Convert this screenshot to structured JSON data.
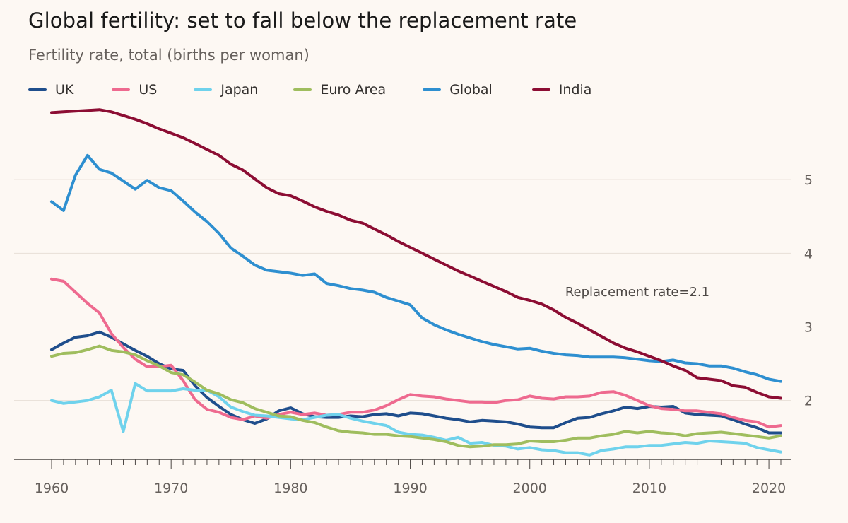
{
  "chart_data": {
    "type": "line",
    "title": "Global fertility: set to fall below the replacement rate",
    "subtitle": "Fertility rate, total (births per woman)",
    "xlabel": "",
    "ylabel": "",
    "xlim": [
      1960,
      2021
    ],
    "ylim": [
      1.2,
      6.0
    ],
    "x_ticks": [
      1960,
      1970,
      1980,
      1990,
      2000,
      2010,
      2020
    ],
    "y_ticks": [
      2,
      3,
      4,
      5
    ],
    "y_axis_side": "right",
    "grid": "horizontal",
    "legend_position": "top-left",
    "annotations": [
      {
        "text": "Replacement rate=2.1",
        "x": 2009,
        "y": 3.42
      }
    ],
    "x": [
      1960,
      1961,
      1962,
      1963,
      1964,
      1965,
      1966,
      1967,
      1968,
      1969,
      1970,
      1971,
      1972,
      1973,
      1974,
      1975,
      1976,
      1977,
      1978,
      1979,
      1980,
      1981,
      1982,
      1983,
      1984,
      1985,
      1986,
      1987,
      1988,
      1989,
      1990,
      1991,
      1992,
      1993,
      1994,
      1995,
      1996,
      1997,
      1998,
      1999,
      2000,
      2001,
      2002,
      2003,
      2004,
      2005,
      2006,
      2007,
      2008,
      2009,
      2010,
      2011,
      2012,
      2013,
      2014,
      2015,
      2016,
      2017,
      2018,
      2019,
      2020,
      2021
    ],
    "series": [
      {
        "name": "UK",
        "color": "#1f4e8c",
        "values": [
          2.69,
          2.78,
          2.86,
          2.88,
          2.93,
          2.86,
          2.77,
          2.68,
          2.6,
          2.5,
          2.43,
          2.41,
          2.2,
          2.04,
          1.92,
          1.81,
          1.74,
          1.69,
          1.75,
          1.86,
          1.9,
          1.82,
          1.78,
          1.77,
          1.77,
          1.79,
          1.78,
          1.81,
          1.82,
          1.79,
          1.83,
          1.82,
          1.79,
          1.76,
          1.74,
          1.71,
          1.73,
          1.72,
          1.71,
          1.68,
          1.64,
          1.63,
          1.63,
          1.7,
          1.76,
          1.77,
          1.82,
          1.86,
          1.91,
          1.89,
          1.92,
          1.91,
          1.92,
          1.83,
          1.81,
          1.8,
          1.79,
          1.74,
          1.68,
          1.63,
          1.56,
          1.56
        ]
      },
      {
        "name": "US",
        "color": "#ee6a8f",
        "values": [
          3.65,
          3.62,
          3.47,
          3.32,
          3.19,
          2.91,
          2.72,
          2.56,
          2.46,
          2.46,
          2.48,
          2.27,
          2.01,
          1.88,
          1.84,
          1.77,
          1.74,
          1.79,
          1.76,
          1.81,
          1.84,
          1.81,
          1.83,
          1.8,
          1.81,
          1.84,
          1.84,
          1.87,
          1.93,
          2.01,
          2.08,
          2.06,
          2.05,
          2.02,
          2.0,
          1.98,
          1.98,
          1.97,
          2.0,
          2.01,
          2.06,
          2.03,
          2.02,
          2.05,
          2.05,
          2.06,
          2.11,
          2.12,
          2.07,
          2.0,
          1.93,
          1.89,
          1.88,
          1.86,
          1.86,
          1.84,
          1.82,
          1.77,
          1.73,
          1.71,
          1.64,
          1.66
        ]
      },
      {
        "name": "Japan",
        "color": "#6fd2ec",
        "values": [
          2.0,
          1.96,
          1.98,
          2.0,
          2.05,
          2.14,
          1.58,
          2.23,
          2.13,
          2.13,
          2.13,
          2.16,
          2.14,
          2.14,
          2.05,
          1.91,
          1.85,
          1.8,
          1.79,
          1.77,
          1.75,
          1.74,
          1.77,
          1.8,
          1.81,
          1.76,
          1.72,
          1.69,
          1.66,
          1.57,
          1.54,
          1.53,
          1.5,
          1.46,
          1.5,
          1.42,
          1.43,
          1.39,
          1.38,
          1.34,
          1.36,
          1.33,
          1.32,
          1.29,
          1.29,
          1.26,
          1.32,
          1.34,
          1.37,
          1.37,
          1.39,
          1.39,
          1.41,
          1.43,
          1.42,
          1.45,
          1.44,
          1.43,
          1.42,
          1.36,
          1.33,
          1.3
        ]
      },
      {
        "name": "Euro Area",
        "color": "#9fbd5e",
        "values": [
          2.6,
          2.64,
          2.65,
          2.69,
          2.74,
          2.68,
          2.66,
          2.62,
          2.54,
          2.47,
          2.38,
          2.35,
          2.25,
          2.14,
          2.09,
          2.01,
          1.97,
          1.89,
          1.84,
          1.79,
          1.78,
          1.73,
          1.7,
          1.64,
          1.59,
          1.57,
          1.56,
          1.54,
          1.54,
          1.52,
          1.51,
          1.49,
          1.47,
          1.44,
          1.39,
          1.37,
          1.38,
          1.4,
          1.4,
          1.41,
          1.45,
          1.44,
          1.44,
          1.46,
          1.49,
          1.49,
          1.52,
          1.54,
          1.58,
          1.56,
          1.58,
          1.56,
          1.55,
          1.52,
          1.55,
          1.56,
          1.57,
          1.55,
          1.53,
          1.51,
          1.49,
          1.52
        ]
      },
      {
        "name": "Global",
        "color": "#2e8fd0",
        "values": [
          4.7,
          4.58,
          5.06,
          5.33,
          5.14,
          5.09,
          4.98,
          4.87,
          4.99,
          4.89,
          4.85,
          4.71,
          4.56,
          4.43,
          4.27,
          4.07,
          3.96,
          3.84,
          3.77,
          3.75,
          3.73,
          3.7,
          3.72,
          3.59,
          3.56,
          3.52,
          3.5,
          3.47,
          3.4,
          3.35,
          3.3,
          3.12,
          3.03,
          2.96,
          2.9,
          2.85,
          2.8,
          2.76,
          2.73,
          2.7,
          2.71,
          2.67,
          2.64,
          2.62,
          2.61,
          2.59,
          2.59,
          2.59,
          2.58,
          2.56,
          2.54,
          2.53,
          2.55,
          2.51,
          2.5,
          2.47,
          2.47,
          2.44,
          2.39,
          2.35,
          2.29,
          2.26
        ]
      },
      {
        "name": "India",
        "color": "#8c0d33",
        "values": [
          5.91,
          5.92,
          5.93,
          5.94,
          5.95,
          5.92,
          5.87,
          5.82,
          5.76,
          5.69,
          5.63,
          5.57,
          5.49,
          5.41,
          5.33,
          5.21,
          5.13,
          5.01,
          4.89,
          4.81,
          4.78,
          4.71,
          4.63,
          4.57,
          4.52,
          4.45,
          4.41,
          4.33,
          4.25,
          4.16,
          4.08,
          4.0,
          3.92,
          3.84,
          3.76,
          3.69,
          3.62,
          3.55,
          3.48,
          3.4,
          3.36,
          3.31,
          3.23,
          3.13,
          3.05,
          2.96,
          2.87,
          2.78,
          2.71,
          2.66,
          2.6,
          2.54,
          2.47,
          2.41,
          2.31,
          2.29,
          2.27,
          2.2,
          2.18,
          2.11,
          2.05,
          2.03
        ]
      }
    ]
  }
}
